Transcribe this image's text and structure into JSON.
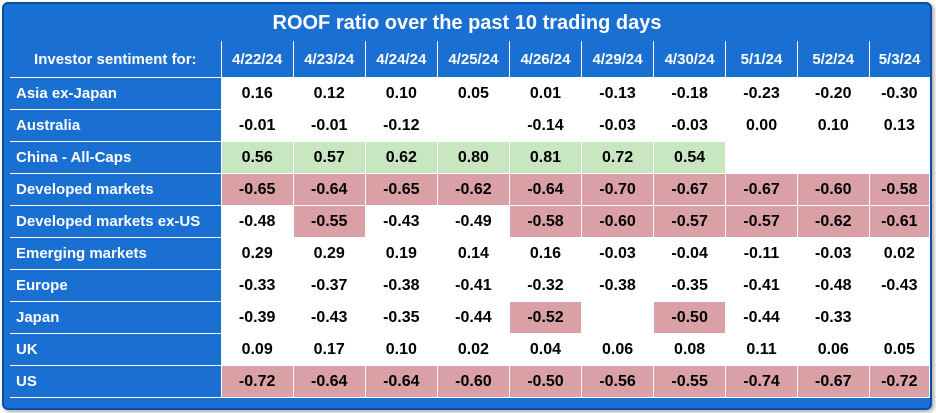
{
  "chart_data": {
    "type": "table",
    "title": "ROOF ratio over the past 10 trading days",
    "row_header_label": "Investor sentiment for:",
    "columns": [
      "4/22/24",
      "4/23/24",
      "4/24/24",
      "4/25/24",
      "4/26/24",
      "4/29/24",
      "4/30/24",
      "5/1/24",
      "5/2/24",
      "5/3/24"
    ],
    "rows": [
      {
        "name": "Asia ex-Japan",
        "values": [
          "0.16",
          "0.12",
          "0.10",
          "0.05",
          "0.01",
          "-0.13",
          "-0.18",
          "-0.23",
          "-0.20",
          "-0.30"
        ],
        "shading": [
          "",
          "",
          "",
          "",
          "",
          "",
          "",
          "",
          "",
          ""
        ]
      },
      {
        "name": "Australia",
        "values": [
          "-0.01",
          "-0.01",
          "-0.12",
          "",
          "-0.14",
          "-0.03",
          "-0.03",
          "0.00",
          "0.10",
          "0.13"
        ],
        "shading": [
          "",
          "",
          "",
          "",
          "",
          "",
          "",
          "",
          "",
          ""
        ]
      },
      {
        "name": "China - All-Caps",
        "values": [
          "0.56",
          "0.57",
          "0.62",
          "0.80",
          "0.81",
          "0.72",
          "0.54",
          "",
          "",
          ""
        ],
        "shading": [
          "pos",
          "pos",
          "pos",
          "pos",
          "pos",
          "pos",
          "pos",
          "",
          "",
          ""
        ]
      },
      {
        "name": "Developed markets",
        "values": [
          "-0.65",
          "-0.64",
          "-0.65",
          "-0.62",
          "-0.64",
          "-0.70",
          "-0.67",
          "-0.67",
          "-0.60",
          "-0.58"
        ],
        "shading": [
          "neg",
          "neg",
          "neg",
          "neg",
          "neg",
          "neg",
          "neg",
          "neg",
          "neg",
          "neg"
        ]
      },
      {
        "name": "Developed markets ex-US",
        "values": [
          "-0.48",
          "-0.55",
          "-0.43",
          "-0.49",
          "-0.58",
          "-0.60",
          "-0.57",
          "-0.57",
          "-0.62",
          "-0.61"
        ],
        "shading": [
          "",
          "neg",
          "",
          "",
          "neg",
          "neg",
          "neg",
          "neg",
          "neg",
          "neg"
        ]
      },
      {
        "name": "Emerging markets",
        "values": [
          "0.29",
          "0.29",
          "0.19",
          "0.14",
          "0.16",
          "-0.03",
          "-0.04",
          "-0.11",
          "-0.03",
          "0.02"
        ],
        "shading": [
          "",
          "",
          "",
          "",
          "",
          "",
          "",
          "",
          "",
          ""
        ]
      },
      {
        "name": "Europe",
        "values": [
          "-0.33",
          "-0.37",
          "-0.38",
          "-0.41",
          "-0.32",
          "-0.38",
          "-0.35",
          "-0.41",
          "-0.48",
          "-0.43"
        ],
        "shading": [
          "",
          "",
          "",
          "",
          "",
          "",
          "",
          "",
          "",
          ""
        ]
      },
      {
        "name": "Japan",
        "values": [
          "-0.39",
          "-0.43",
          "-0.35",
          "-0.44",
          "-0.52",
          "",
          "-0.50",
          "-0.44",
          "-0.33",
          ""
        ],
        "shading": [
          "",
          "",
          "",
          "",
          "neg",
          "",
          "neg",
          "",
          "",
          ""
        ]
      },
      {
        "name": "UK",
        "values": [
          "0.09",
          "0.17",
          "0.10",
          "0.02",
          "0.04",
          "0.06",
          "0.08",
          "0.11",
          "0.06",
          "0.05"
        ],
        "shading": [
          "",
          "",
          "",
          "",
          "",
          "",
          "",
          "",
          "",
          ""
        ]
      },
      {
        "name": "US",
        "values": [
          "-0.72",
          "-0.64",
          "-0.64",
          "-0.60",
          "-0.50",
          "-0.56",
          "-0.55",
          "-0.74",
          "-0.67",
          "-0.72"
        ],
        "shading": [
          "neg",
          "neg",
          "neg",
          "neg",
          "neg",
          "neg",
          "neg",
          "neg",
          "neg",
          "neg"
        ]
      }
    ],
    "colors": {
      "header_background": "#1a6fd3",
      "positive_highlight": "#c8e6c0",
      "negative_highlight": "#d9a1a6",
      "cell_background": "#ffffff"
    }
  }
}
